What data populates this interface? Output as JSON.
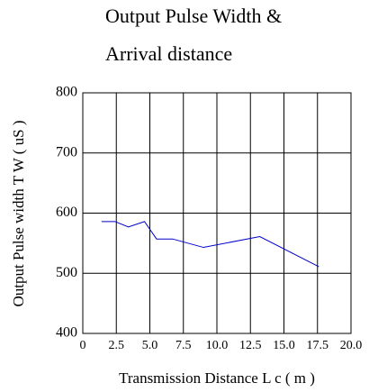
{
  "chart_data": {
    "type": "line",
    "title": [
      "Output Pulse Width &",
      "Arrival distance"
    ],
    "x_label": "Transmission Distance L c ( m )",
    "y_label": "Output Pulse width T W ( uS )",
    "x": [
      1.4,
      2.4,
      3.4,
      4.6,
      5.5,
      6.7,
      9.0,
      13.2,
      17.6
    ],
    "series": [
      {
        "name": "Output Pulse Width",
        "color": "#0000cc",
        "values": [
          586,
          586,
          577,
          586,
          557,
          557,
          543,
          561,
          511
        ]
      }
    ],
    "xlim": [
      0,
      20
    ],
    "xticks": [
      0,
      2.5,
      {
        "value": 5,
        "label": "5.0"
      },
      7.5,
      {
        "value": 10,
        "label": "10.0"
      },
      12.5,
      {
        "value": 15,
        "label": "15.0"
      },
      17.5,
      {
        "value": 20,
        "label": "20.0"
      }
    ],
    "ylim": [
      400,
      800
    ],
    "yticks": [
      400,
      500,
      600,
      700,
      800
    ],
    "grid": true
  }
}
